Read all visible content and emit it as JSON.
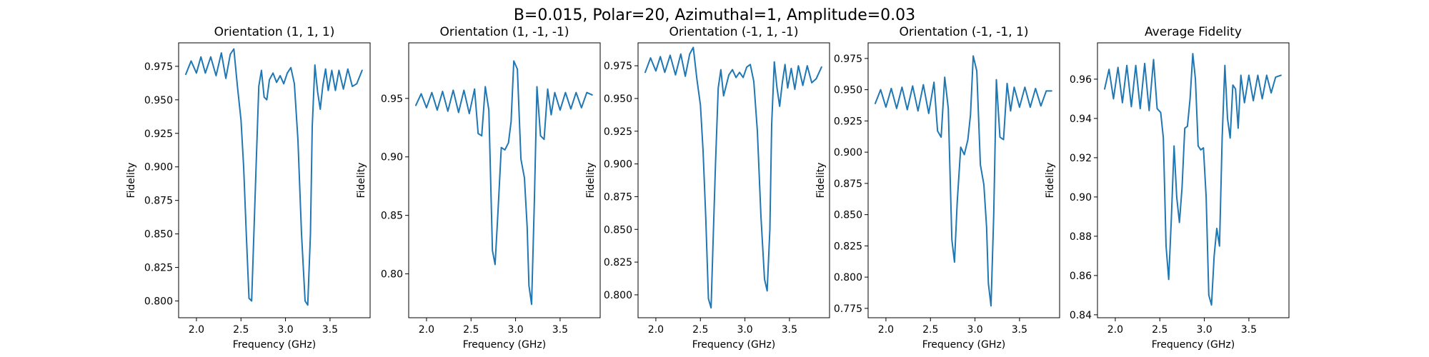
{
  "figure": {
    "suptitle": "B=0.015, Polar=20, Azimuthal=1, Amplitude=0.03",
    "line_color": "#1f77b4"
  },
  "chart_data": [
    {
      "type": "line",
      "title": "Orientation (1, 1, 1)",
      "xlabel": "Frequency (GHz)",
      "ylabel": "Fidelity",
      "xlim": [
        1.8,
        3.95
      ],
      "ylim": [
        0.7875,
        0.9925
      ],
      "xticks": [
        2.0,
        2.5,
        3.0,
        3.5
      ],
      "xtick_labels": [
        "2.0",
        "2.5",
        "3.0",
        "3.5"
      ],
      "yticks": [
        0.8,
        0.825,
        0.85,
        0.875,
        0.9,
        0.925,
        0.95,
        0.975
      ],
      "ytick_labels": [
        "0.800",
        "0.825",
        "0.850",
        "0.875",
        "0.900",
        "0.925",
        "0.950",
        "0.975"
      ],
      "x": [
        1.88,
        1.94,
        2.0,
        2.05,
        2.1,
        2.16,
        2.22,
        2.28,
        2.33,
        2.38,
        2.42,
        2.46,
        2.5,
        2.53,
        2.56,
        2.59,
        2.62,
        2.64,
        2.67,
        2.7,
        2.73,
        2.76,
        2.79,
        2.82,
        2.86,
        2.9,
        2.94,
        2.98,
        3.02,
        3.06,
        3.1,
        3.14,
        3.18,
        3.22,
        3.25,
        3.28,
        3.3,
        3.33,
        3.36,
        3.39,
        3.42,
        3.45,
        3.48,
        3.52,
        3.56,
        3.6,
        3.65,
        3.7,
        3.75,
        3.8,
        3.86
      ],
      "series": [
        {
          "values": [
            0.969,
            0.979,
            0.97,
            0.982,
            0.97,
            0.982,
            0.968,
            0.985,
            0.966,
            0.984,
            0.988,
            0.96,
            0.935,
            0.9,
            0.85,
            0.802,
            0.8,
            0.84,
            0.9,
            0.96,
            0.972,
            0.952,
            0.95,
            0.965,
            0.97,
            0.963,
            0.968,
            0.962,
            0.97,
            0.974,
            0.962,
            0.92,
            0.85,
            0.8,
            0.797,
            0.85,
            0.93,
            0.976,
            0.956,
            0.943,
            0.961,
            0.973,
            0.957,
            0.972,
            0.957,
            0.972,
            0.958,
            0.973,
            0.96,
            0.962,
            0.972
          ]
        }
      ]
    },
    {
      "type": "line",
      "title": "Orientation (1, -1, -1)",
      "xlabel": "Frequency (GHz)",
      "ylabel": "Fidelity",
      "xlim": [
        1.8,
        3.95
      ],
      "ylim": [
        0.7625,
        0.9975
      ],
      "xticks": [
        2.0,
        2.5,
        3.0,
        3.5
      ],
      "xtick_labels": [
        "2.0",
        "2.5",
        "3.0",
        "3.5"
      ],
      "yticks": [
        0.8,
        0.85,
        0.9,
        0.95
      ],
      "ytick_labels": [
        "0.80",
        "0.85",
        "0.90",
        "0.95"
      ],
      "x": [
        1.88,
        1.94,
        2.0,
        2.06,
        2.12,
        2.18,
        2.24,
        2.3,
        2.36,
        2.42,
        2.48,
        2.54,
        2.58,
        2.62,
        2.66,
        2.7,
        2.74,
        2.77,
        2.8,
        2.84,
        2.88,
        2.92,
        2.95,
        2.98,
        3.02,
        3.06,
        3.1,
        3.13,
        3.15,
        3.18,
        3.21,
        3.24,
        3.28,
        3.32,
        3.36,
        3.4,
        3.44,
        3.5,
        3.56,
        3.62,
        3.68,
        3.74,
        3.8,
        3.86
      ],
      "series": [
        {
          "values": [
            0.944,
            0.954,
            0.942,
            0.955,
            0.94,
            0.956,
            0.939,
            0.957,
            0.938,
            0.957,
            0.937,
            0.958,
            0.92,
            0.918,
            0.96,
            0.94,
            0.82,
            0.808,
            0.85,
            0.908,
            0.906,
            0.912,
            0.93,
            0.982,
            0.975,
            0.898,
            0.882,
            0.84,
            0.79,
            0.774,
            0.86,
            0.96,
            0.918,
            0.915,
            0.958,
            0.936,
            0.955,
            0.94,
            0.955,
            0.941,
            0.955,
            0.942,
            0.955,
            0.953
          ]
        }
      ]
    },
    {
      "type": "line",
      "title": "Orientation (-1, 1, -1)",
      "xlabel": "Frequency (GHz)",
      "ylabel": "Fidelity",
      "xlim": [
        1.8,
        3.95
      ],
      "ylim": [
        0.7825,
        0.9925
      ],
      "xticks": [
        2.0,
        2.5,
        3.0,
        3.5
      ],
      "xtick_labels": [
        "2.0",
        "2.5",
        "3.0",
        "3.5"
      ],
      "yticks": [
        0.8,
        0.825,
        0.85,
        0.875,
        0.9,
        0.925,
        0.95,
        0.975
      ],
      "ytick_labels": [
        "0.800",
        "0.825",
        "0.850",
        "0.875",
        "0.900",
        "0.925",
        "0.950",
        "0.975"
      ],
      "x": [
        1.88,
        1.94,
        2.0,
        2.05,
        2.1,
        2.16,
        2.22,
        2.28,
        2.33,
        2.38,
        2.42,
        2.46,
        2.5,
        2.53,
        2.56,
        2.59,
        2.62,
        2.64,
        2.67,
        2.7,
        2.73,
        2.76,
        2.79,
        2.82,
        2.86,
        2.9,
        2.94,
        2.98,
        3.02,
        3.06,
        3.1,
        3.14,
        3.18,
        3.22,
        3.25,
        3.28,
        3.3,
        3.33,
        3.36,
        3.39,
        3.42,
        3.45,
        3.48,
        3.52,
        3.56,
        3.6,
        3.65,
        3.7,
        3.75,
        3.8,
        3.86
      ],
      "series": [
        {
          "values": [
            0.97,
            0.981,
            0.971,
            0.982,
            0.97,
            0.983,
            0.968,
            0.984,
            0.967,
            0.984,
            0.989,
            0.965,
            0.945,
            0.91,
            0.86,
            0.797,
            0.79,
            0.835,
            0.9,
            0.958,
            0.972,
            0.952,
            0.96,
            0.968,
            0.972,
            0.966,
            0.97,
            0.966,
            0.974,
            0.976,
            0.963,
            0.925,
            0.86,
            0.812,
            0.803,
            0.85,
            0.93,
            0.978,
            0.958,
            0.944,
            0.962,
            0.976,
            0.958,
            0.973,
            0.957,
            0.975,
            0.96,
            0.975,
            0.962,
            0.965,
            0.974
          ]
        }
      ]
    },
    {
      "type": "line",
      "title": "Orientation (-1, -1, 1)",
      "xlabel": "Frequency (GHz)",
      "ylabel": "Fidelity",
      "xlim": [
        1.8,
        3.95
      ],
      "ylim": [
        0.7675,
        0.9875
      ],
      "xticks": [
        2.0,
        2.5,
        3.0,
        3.5
      ],
      "xtick_labels": [
        "2.0",
        "2.5",
        "3.0",
        "3.5"
      ],
      "yticks": [
        0.775,
        0.8,
        0.825,
        0.85,
        0.875,
        0.9,
        0.925,
        0.95,
        0.975
      ],
      "ytick_labels": [
        "0.775",
        "0.800",
        "0.825",
        "0.850",
        "0.875",
        "0.900",
        "0.925",
        "0.950",
        "0.975"
      ],
      "x": [
        1.88,
        1.94,
        2.0,
        2.06,
        2.12,
        2.18,
        2.24,
        2.3,
        2.36,
        2.42,
        2.48,
        2.54,
        2.58,
        2.62,
        2.66,
        2.7,
        2.74,
        2.77,
        2.8,
        2.84,
        2.88,
        2.92,
        2.95,
        2.98,
        3.02,
        3.06,
        3.1,
        3.13,
        3.15,
        3.18,
        3.21,
        3.24,
        3.28,
        3.32,
        3.36,
        3.4,
        3.44,
        3.5,
        3.56,
        3.62,
        3.68,
        3.74,
        3.8,
        3.86
      ],
      "series": [
        {
          "values": [
            0.939,
            0.95,
            0.936,
            0.951,
            0.935,
            0.952,
            0.934,
            0.953,
            0.933,
            0.954,
            0.931,
            0.956,
            0.917,
            0.912,
            0.96,
            0.935,
            0.83,
            0.812,
            0.86,
            0.904,
            0.898,
            0.91,
            0.93,
            0.977,
            0.965,
            0.89,
            0.874,
            0.84,
            0.795,
            0.777,
            0.85,
            0.958,
            0.912,
            0.91,
            0.955,
            0.933,
            0.952,
            0.936,
            0.952,
            0.936,
            0.951,
            0.937,
            0.949,
            0.949
          ]
        }
      ]
    },
    {
      "type": "line",
      "title": "Average Fidelity",
      "xlabel": "Frequency (GHz)",
      "ylabel": "Fidelity",
      "xlim": [
        1.8,
        3.95
      ],
      "ylim": [
        0.8385,
        0.9785
      ],
      "xticks": [
        2.0,
        2.5,
        3.0,
        3.5
      ],
      "xtick_labels": [
        "2.0",
        "2.5",
        "3.0",
        "3.5"
      ],
      "yticks": [
        0.84,
        0.86,
        0.88,
        0.9,
        0.92,
        0.94,
        0.96
      ],
      "ytick_labels": [
        "0.84",
        "0.86",
        "0.88",
        "0.90",
        "0.92",
        "0.94",
        "0.96"
      ],
      "x": [
        1.88,
        1.93,
        1.98,
        2.03,
        2.08,
        2.13,
        2.18,
        2.23,
        2.28,
        2.33,
        2.38,
        2.43,
        2.47,
        2.51,
        2.54,
        2.57,
        2.6,
        2.63,
        2.66,
        2.69,
        2.72,
        2.75,
        2.78,
        2.81,
        2.84,
        2.87,
        2.9,
        2.93,
        2.96,
        2.99,
        3.02,
        3.05,
        3.08,
        3.11,
        3.14,
        3.17,
        3.2,
        3.23,
        3.26,
        3.29,
        3.32,
        3.35,
        3.38,
        3.41,
        3.45,
        3.5,
        3.55,
        3.6,
        3.65,
        3.7,
        3.75,
        3.8,
        3.86
      ],
      "series": [
        {
          "values": [
            0.955,
            0.965,
            0.95,
            0.966,
            0.948,
            0.967,
            0.946,
            0.967,
            0.945,
            0.968,
            0.944,
            0.97,
            0.945,
            0.943,
            0.93,
            0.875,
            0.858,
            0.89,
            0.926,
            0.9,
            0.887,
            0.905,
            0.935,
            0.936,
            0.95,
            0.973,
            0.96,
            0.926,
            0.924,
            0.925,
            0.9,
            0.85,
            0.845,
            0.87,
            0.884,
            0.875,
            0.93,
            0.967,
            0.94,
            0.93,
            0.957,
            0.955,
            0.935,
            0.962,
            0.948,
            0.962,
            0.949,
            0.962,
            0.95,
            0.962,
            0.953,
            0.961,
            0.962
          ]
        }
      ]
    }
  ]
}
